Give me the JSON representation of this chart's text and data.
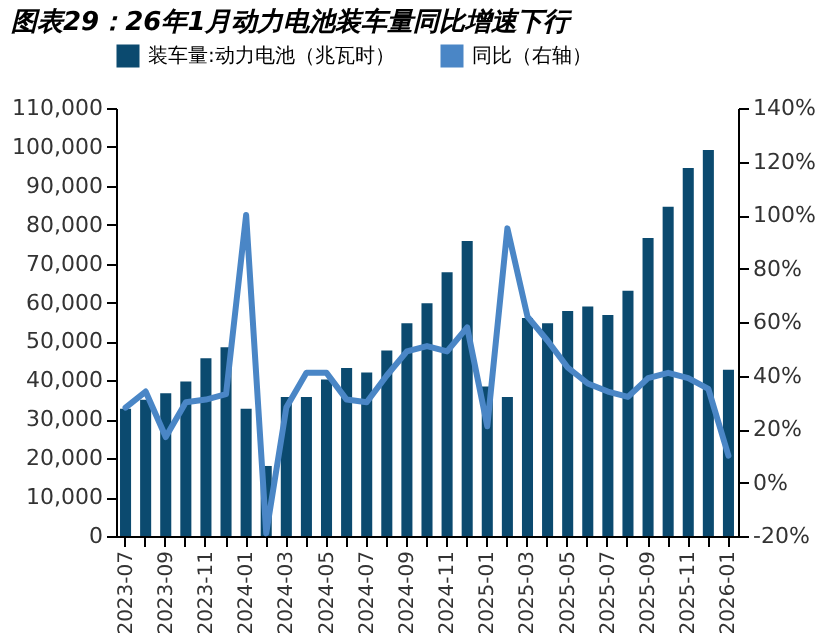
{
  "chart_data": {
    "type": "bar",
    "title": "图表29：26年1月动力电池装车量同比增速下行",
    "categories": [
      "2023-07",
      null,
      "2023-09",
      null,
      "2023-11",
      null,
      "2024-01",
      null,
      "2024-03",
      null,
      "2024-05",
      null,
      "2024-07",
      null,
      "2024-09",
      null,
      "2024-11",
      null,
      "2025-01",
      null,
      "2025-03",
      null,
      "2025-05",
      null,
      "2025-07",
      null,
      "2025-09",
      null,
      "2025-11",
      null,
      "2026-01"
    ],
    "series": [
      {
        "name": "装车量:动力电池（兆瓦时）",
        "color": "#0b4a6f",
        "values": [
          32700,
          35000,
          36700,
          39700,
          45700,
          48500,
          32700,
          18000,
          35700,
          35700,
          40200,
          43200,
          42000,
          47700,
          54700,
          59800,
          67800,
          75800,
          38400,
          35700,
          56000,
          54700,
          57800,
          59000,
          56800,
          63000,
          76600,
          84600,
          94600,
          99200,
          42700
        ]
      },
      {
        "name": "同比（右轴）",
        "type": "line",
        "axis": "y2",
        "color": "#4a86c6",
        "values": [
          28,
          34,
          17,
          30,
          31,
          33,
          100,
          -19,
          28,
          41,
          41,
          31,
          30,
          40,
          49,
          51,
          49,
          58,
          21,
          95,
          62,
          53,
          43,
          37,
          34,
          32,
          39,
          41,
          39,
          35,
          10
        ]
      }
    ],
    "ylim": [
      0,
      110000
    ],
    "yticks": [
      {
        "value": 0,
        "label": "0"
      },
      {
        "value": 10000,
        "label": "10,000"
      },
      {
        "value": 20000,
        "label": "20,000"
      },
      {
        "value": 30000,
        "label": "30,000"
      },
      {
        "value": 40000,
        "label": "40,000"
      },
      {
        "value": 50000,
        "label": "50,000"
      },
      {
        "value": 60000,
        "label": "60,000"
      },
      {
        "value": 70000,
        "label": "70,000"
      },
      {
        "value": 80000,
        "label": "80,000"
      },
      {
        "value": 90000,
        "label": "90,000"
      },
      {
        "value": 100000,
        "label": "100,000"
      },
      {
        "value": 110000,
        "label": "110,000"
      }
    ],
    "y2lim": [
      -20,
      140
    ],
    "y2ticks": [
      {
        "value": -20,
        "label": "-20%"
      },
      {
        "value": 0,
        "label": "0%"
      },
      {
        "value": 20,
        "label": "20%"
      },
      {
        "value": 40,
        "label": "40%"
      },
      {
        "value": 60,
        "label": "60%"
      },
      {
        "value": 80,
        "label": "80%"
      },
      {
        "value": 100,
        "label": "100%"
      },
      {
        "value": 120,
        "label": "120%"
      },
      {
        "value": 140,
        "label": "140%"
      }
    ],
    "legend": "top",
    "grid": false
  }
}
